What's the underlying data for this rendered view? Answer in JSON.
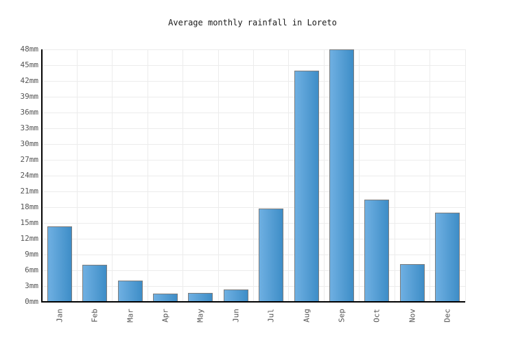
{
  "chart_data": {
    "type": "bar",
    "title": "Average monthly rainfall in Loreto",
    "categories": [
      "Jan",
      "Feb",
      "Mar",
      "Apr",
      "May",
      "Jun",
      "Jul",
      "Aug",
      "Sep",
      "Oct",
      "Nov",
      "Dec"
    ],
    "values": [
      14.4,
      7.0,
      4.1,
      1.6,
      1.7,
      2.3,
      17.7,
      44.0,
      48.0,
      19.4,
      7.2,
      17.0
    ],
    "unit": "mm",
    "xlabel": "",
    "ylabel": "",
    "ylim": [
      0,
      48
    ],
    "ytick_step": 3,
    "ytick_labels": [
      "0mm",
      "3mm",
      "6mm",
      "9mm",
      "12mm",
      "15mm",
      "18mm",
      "21mm",
      "24mm",
      "27mm",
      "30mm",
      "33mm",
      "36mm",
      "39mm",
      "42mm",
      "45mm",
      "48mm"
    ],
    "grid": true,
    "legend": false,
    "colors": {
      "bar_gradient_left": "#6FB0E2",
      "bar_gradient_right": "#3E8DC7",
      "bar_border": "#7b7b7b",
      "gridline": "#ececec",
      "axis": "#000000",
      "tick_label": "#545454",
      "title": "#1a1a1a",
      "background": "#ffffff"
    }
  }
}
